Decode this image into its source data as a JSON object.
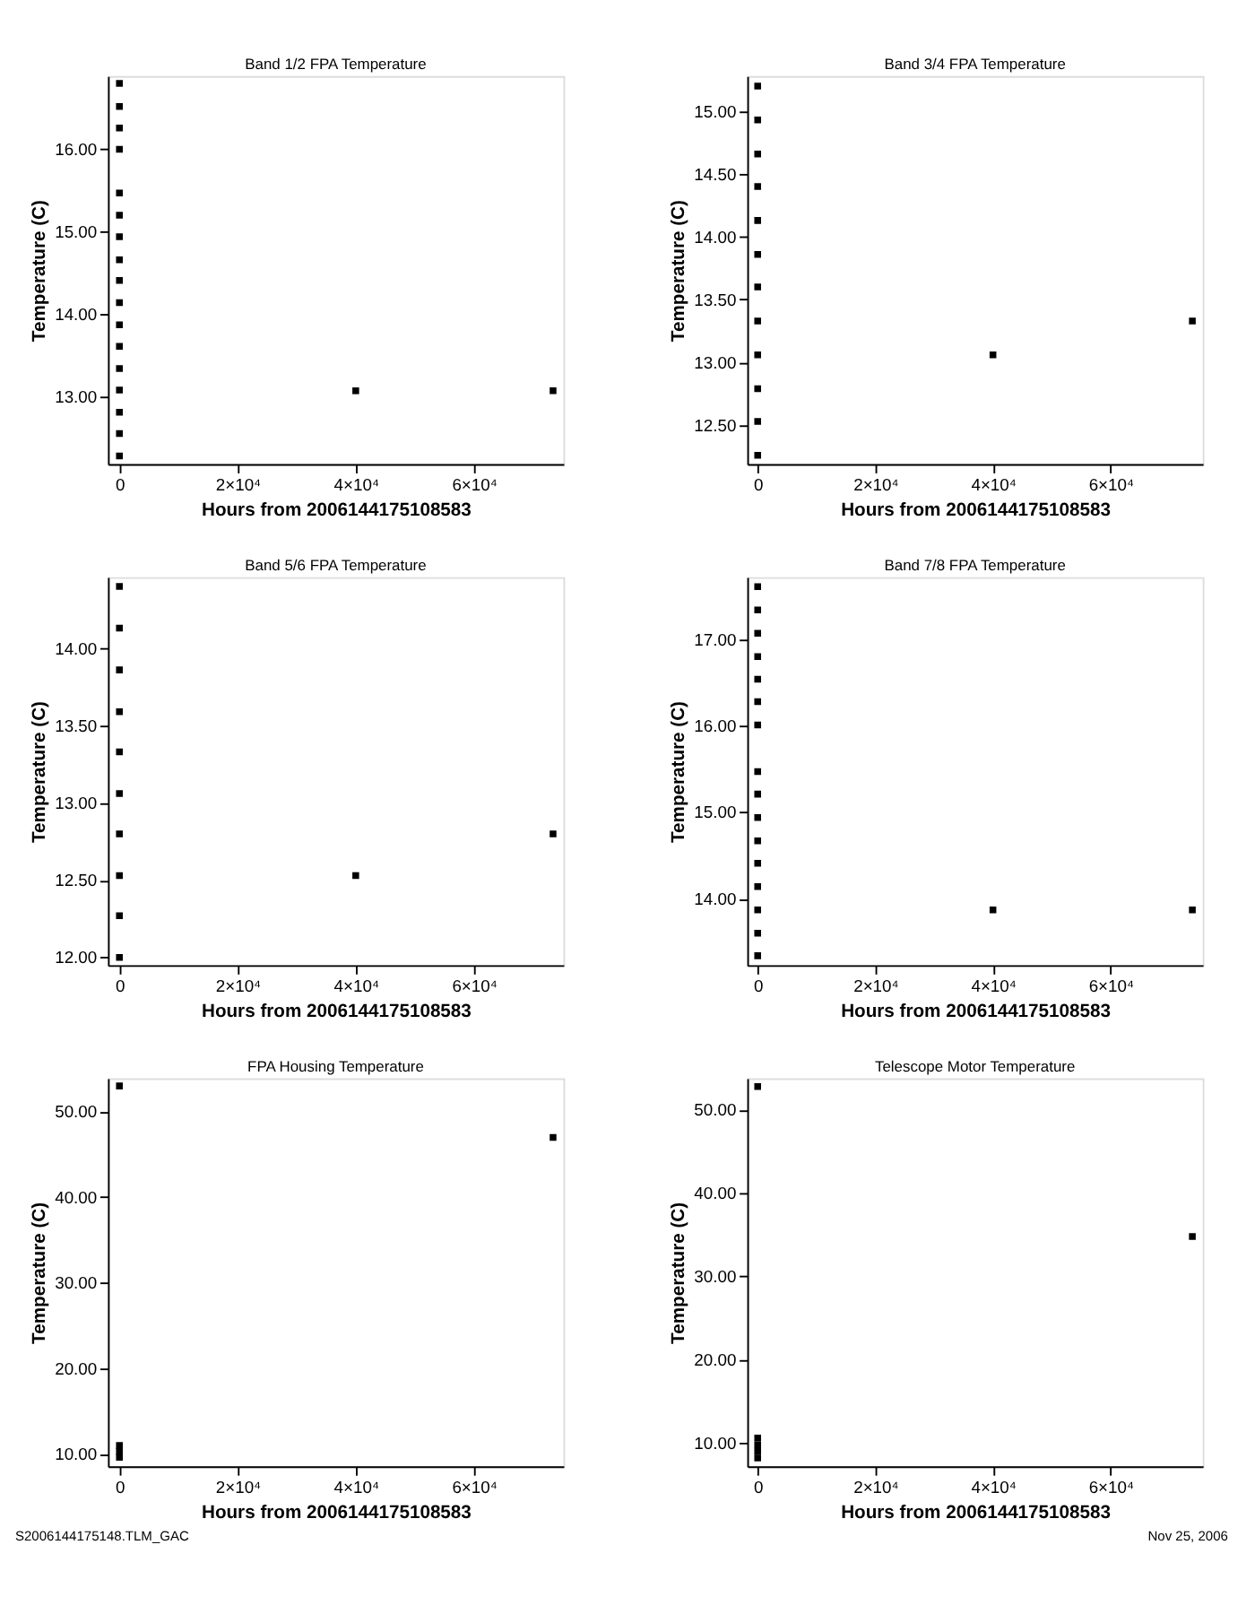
{
  "chart_data": [
    {
      "type": "scatter",
      "title": "Band 1/2 FPA Temperature",
      "xlabel": "Hours from 2006144175108583",
      "ylabel": "Temperature (C)",
      "marker": "square",
      "grid": false,
      "legend": false,
      "xlim": [
        -1940,
        75150
      ],
      "xticks": [
        {
          "value": 0,
          "label": "0"
        },
        {
          "value": 20000,
          "label": "2×10⁴"
        },
        {
          "value": 40000,
          "label": "4×10⁴"
        },
        {
          "value": 60000,
          "label": "6×10⁴"
        }
      ],
      "ylim": [
        12.18,
        16.89
      ],
      "yticks": [
        {
          "value": 13,
          "label": "13.00"
        },
        {
          "value": 14,
          "label": "14.00"
        },
        {
          "value": 15,
          "label": "15.00"
        },
        {
          "value": 16,
          "label": "16.00"
        }
      ],
      "series": [
        {
          "color": "#000000",
          "x": [
            0,
            0,
            0,
            0,
            0,
            0,
            0,
            0,
            0,
            0,
            0,
            0,
            0,
            0,
            0,
            0,
            0,
            40000,
            73400
          ],
          "values": [
            16.8,
            16.52,
            16.26,
            16.0,
            15.47,
            15.2,
            14.94,
            14.66,
            14.41,
            14.14,
            13.87,
            13.61,
            13.34,
            13.08,
            12.81,
            12.55,
            12.28,
            13.07,
            13.07
          ]
        }
      ]
    },
    {
      "type": "scatter",
      "title": "Band 3/4 FPA Temperature",
      "xlabel": "Hours from 2006144175108583",
      "ylabel": "Temperature (C)",
      "marker": "square",
      "grid": false,
      "legend": false,
      "xlim": [
        -1770,
        75660
      ],
      "xticks": [
        {
          "value": 0,
          "label": "0"
        },
        {
          "value": 20000,
          "label": "2×10⁴"
        },
        {
          "value": 40000,
          "label": "4×10⁴"
        },
        {
          "value": 60000,
          "label": "6×10⁴"
        }
      ],
      "ylim": [
        12.19,
        15.28
      ],
      "yticks": [
        {
          "value": 12.5,
          "label": "12.50"
        },
        {
          "value": 13,
          "label": "13.00"
        },
        {
          "value": 13.5,
          "label": "13.50"
        },
        {
          "value": 14,
          "label": "14.00"
        },
        {
          "value": 14.5,
          "label": "14.50"
        },
        {
          "value": 15,
          "label": "15.00"
        }
      ],
      "series": [
        {
          "color": "#000000",
          "x": [
            0,
            0,
            0,
            0,
            0,
            0,
            0,
            0,
            0,
            0,
            0,
            0,
            40000,
            73900
          ],
          "values": [
            15.2,
            14.93,
            14.66,
            14.4,
            14.13,
            13.86,
            13.6,
            13.33,
            13.06,
            12.79,
            12.53,
            12.26,
            13.06,
            13.33
          ]
        }
      ]
    },
    {
      "type": "scatter",
      "title": "Band 5/6 FPA Temperature",
      "xlabel": "Hours from 2006144175108583",
      "ylabel": "Temperature (C)",
      "marker": "square",
      "grid": false,
      "legend": false,
      "xlim": [
        -1940,
        75150
      ],
      "xticks": [
        {
          "value": 0,
          "label": "0"
        },
        {
          "value": 20000,
          "label": "2×10⁴"
        },
        {
          "value": 40000,
          "label": "4×10⁴"
        },
        {
          "value": 60000,
          "label": "6×10⁴"
        }
      ],
      "ylim": [
        11.95,
        14.46
      ],
      "yticks": [
        {
          "value": 12,
          "label": "12.00"
        },
        {
          "value": 12.5,
          "label": "12.50"
        },
        {
          "value": 13,
          "label": "13.00"
        },
        {
          "value": 13.5,
          "label": "13.50"
        },
        {
          "value": 14,
          "label": "14.00"
        }
      ],
      "series": [
        {
          "color": "#000000",
          "x": [
            0,
            0,
            0,
            0,
            0,
            0,
            0,
            0,
            0,
            0,
            40000,
            73400
          ],
          "values": [
            14.4,
            14.13,
            13.86,
            13.59,
            13.33,
            13.06,
            12.8,
            12.53,
            12.27,
            12.0,
            12.53,
            12.8
          ]
        }
      ]
    },
    {
      "type": "scatter",
      "title": "Band 7/8 FPA Temperature",
      "xlabel": "Hours from 2006144175108583",
      "ylabel": "Temperature (C)",
      "marker": "square",
      "grid": false,
      "legend": false,
      "xlim": [
        -1770,
        75660
      ],
      "xticks": [
        {
          "value": 0,
          "label": "0"
        },
        {
          "value": 20000,
          "label": "2×10⁴"
        },
        {
          "value": 40000,
          "label": "4×10⁴"
        },
        {
          "value": 60000,
          "label": "6×10⁴"
        }
      ],
      "ylim": [
        13.23,
        17.72
      ],
      "yticks": [
        {
          "value": 14,
          "label": "14.00"
        },
        {
          "value": 15,
          "label": "15.00"
        },
        {
          "value": 16,
          "label": "16.00"
        },
        {
          "value": 17,
          "label": "17.00"
        }
      ],
      "series": [
        {
          "color": "#000000",
          "x": [
            0,
            0,
            0,
            0,
            0,
            0,
            0,
            0,
            0,
            0,
            0,
            0,
            0,
            0,
            0,
            0,
            40000,
            73900
          ],
          "values": [
            17.61,
            17.34,
            17.07,
            16.8,
            16.54,
            16.28,
            16.01,
            15.47,
            15.21,
            14.94,
            14.67,
            14.41,
            14.14,
            13.87,
            13.6,
            13.34,
            13.87,
            13.87
          ]
        }
      ]
    },
    {
      "type": "scatter",
      "title": "FPA Housing Temperature",
      "xlabel": "Hours from 2006144175108583",
      "ylabel": "Temperature (C)",
      "marker": "square",
      "grid": false,
      "legend": false,
      "xlim": [
        -1940,
        75150
      ],
      "xticks": [
        {
          "value": 0,
          "label": "0"
        },
        {
          "value": 20000,
          "label": "2×10⁴"
        },
        {
          "value": 40000,
          "label": "4×10⁴"
        },
        {
          "value": 60000,
          "label": "6×10⁴"
        }
      ],
      "ylim": [
        8.55,
        53.9
      ],
      "yticks": [
        {
          "value": 10,
          "label": "10.00"
        },
        {
          "value": 20,
          "label": "20.00"
        },
        {
          "value": 30,
          "label": "30.00"
        },
        {
          "value": 40,
          "label": "40.00"
        },
        {
          "value": 50,
          "label": "50.00"
        }
      ],
      "annotations": [
        "S2006144175148.TLM_GAC"
      ],
      "series": [
        {
          "color": "#000000",
          "x": [
            0,
            0,
            0,
            0,
            73400
          ],
          "values": [
            53.0,
            11.0,
            10.3,
            9.6,
            47.0
          ]
        }
      ]
    },
    {
      "type": "scatter",
      "title": "Telescope Motor Temperature",
      "xlabel": "Hours from 2006144175108583",
      "ylabel": "Temperature (C)",
      "marker": "square",
      "grid": false,
      "legend": false,
      "xlim": [
        -1770,
        75660
      ],
      "xticks": [
        {
          "value": 0,
          "label": "0"
        },
        {
          "value": 20000,
          "label": "2×10⁴"
        },
        {
          "value": 40000,
          "label": "4×10⁴"
        },
        {
          "value": 60000,
          "label": "6×10⁴"
        }
      ],
      "ylim": [
        7.2,
        53.8
      ],
      "yticks": [
        {
          "value": 10,
          "label": "10.00"
        },
        {
          "value": 20,
          "label": "20.00"
        },
        {
          "value": 30,
          "label": "30.00"
        },
        {
          "value": 40,
          "label": "40.00"
        },
        {
          "value": 50,
          "label": "50.00"
        }
      ],
      "annotations": [
        "Nov 25, 2006"
      ],
      "series": [
        {
          "color": "#000000",
          "x": [
            0,
            0,
            0,
            0,
            0,
            73900
          ],
          "values": [
            52.8,
            10.6,
            9.8,
            9.0,
            8.2,
            34.8
          ]
        }
      ]
    }
  ]
}
